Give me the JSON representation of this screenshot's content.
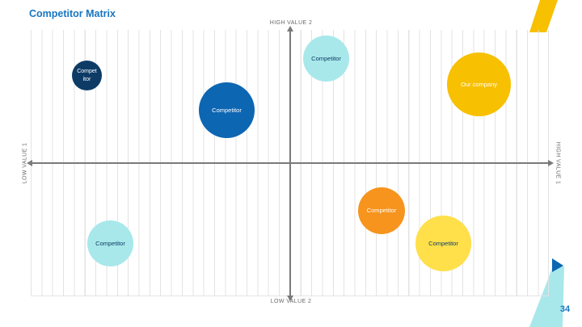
{
  "slide": {
    "title": "Competitor Matrix",
    "page_number": "34"
  },
  "axes": {
    "top": "HIGH VALUE 2",
    "bottom": "LOW VALUE 2",
    "left": "LOW VALUE 1",
    "right": "HIGH VALUE 1"
  },
  "bubbles": [
    {
      "label": "Compet itor",
      "color": "#0d3b66",
      "text_color": "#ffffff"
    },
    {
      "label": "Competitor",
      "color": "#0d66b2",
      "text_color": "#ffffff"
    },
    {
      "label": "Competitor",
      "color": "#a8e8ea",
      "text_color": "#0d3b66"
    },
    {
      "label": "Our company",
      "color": "#f7c000",
      "text_color": "#ffffff"
    },
    {
      "label": "Competitor",
      "color": "#f7941d",
      "text_color": "#ffffff"
    },
    {
      "label": "Competitor",
      "color": "#ffe04a",
      "text_color": "#0d3b66"
    },
    {
      "label": "Competitor",
      "color": "#a8e8ea",
      "text_color": "#0d3b66"
    }
  ],
  "colors": {
    "accent": "#1976c2",
    "deco_yellow": "#f7c000",
    "deco_teal": "#a8e8ea",
    "deco_blue": "#0d66b2"
  }
}
